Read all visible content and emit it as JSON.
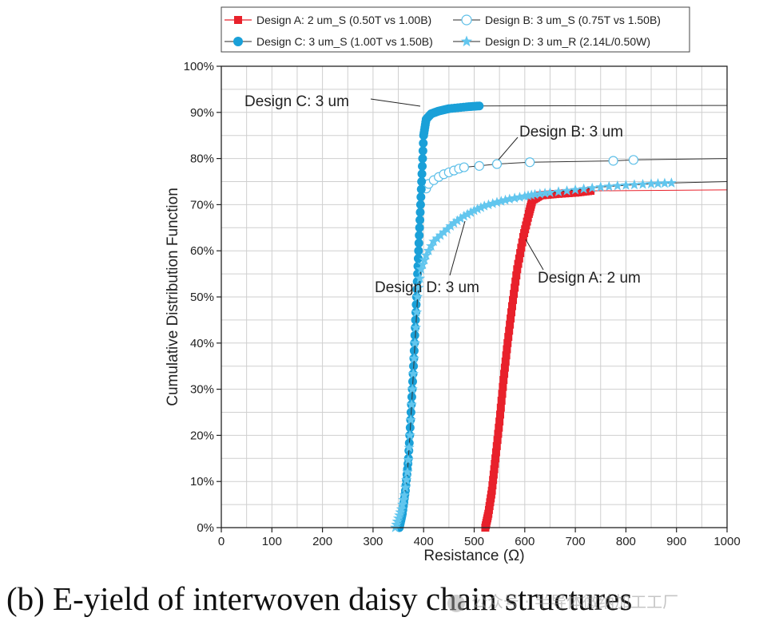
{
  "caption": "(b) E-yield of interwoven daisy chain structures",
  "watermark": "公众号 · 半导体微纳加工工厂",
  "chart_data": {
    "type": "line",
    "xlabel": "Resistance (Ω)",
    "ylabel": "Cumulative Distribution Function",
    "xlim": [
      0,
      1000
    ],
    "ylim": [
      0,
      100
    ],
    "xticks": [
      0,
      100,
      200,
      300,
      400,
      500,
      600,
      700,
      800,
      900,
      1000
    ],
    "yticks": [
      0,
      10,
      20,
      30,
      40,
      50,
      60,
      70,
      80,
      90,
      100
    ],
    "ytick_labels": [
      "0%",
      "10%",
      "20%",
      "30%",
      "40%",
      "50%",
      "60%",
      "70%",
      "80%",
      "90%",
      "100%"
    ],
    "grid": true,
    "legend_position": "top",
    "series": [
      {
        "name": "Design A: 2 um_S (0.50T vs 1.00B)",
        "marker": "square",
        "filled": true,
        "color": "#e8212b",
        "annotation": "Design A: 2 um",
        "x": [
          522,
          528,
          535,
          542,
          550,
          558,
          566,
          575,
          585,
          597,
          608,
          615,
          630,
          660,
          700,
          730,
          1000
        ],
        "y": [
          0,
          3,
          8,
          15,
          23,
          32,
          40,
          48,
          56,
          63,
          68,
          71,
          72,
          72.3,
          72.6,
          73,
          73.2
        ]
      },
      {
        "name": "Design B: 3 um_S (0.75T vs 1.50B)",
        "marker": "circle",
        "filled": false,
        "color": "#5dbfe8",
        "annotation": "Design B: 3 um",
        "x": [
          405,
          410,
          420,
          430,
          440,
          450,
          460,
          470,
          480,
          510,
          545,
          610,
          775,
          815,
          1000
        ],
        "y": [
          73.5,
          74.5,
          75.3,
          76,
          76.6,
          77,
          77.4,
          77.8,
          78.1,
          78.4,
          78.8,
          79.2,
          79.5,
          79.7,
          80
        ]
      },
      {
        "name": "Design C: 3 um_S (1.00T vs 1.50B)",
        "marker": "circle",
        "filled": true,
        "color": "#1aa0d8",
        "annotation": "Design C: 3 um",
        "x": [
          352,
          358,
          364,
          370,
          375,
          380,
          384,
          388,
          392,
          396,
          400,
          405,
          415,
          430,
          450,
          485,
          510,
          1000
        ],
        "y": [
          0,
          3,
          8,
          15,
          25,
          35,
          45,
          55,
          65,
          75,
          85,
          88.5,
          89.7,
          90.3,
          90.8,
          91.2,
          91.4,
          91.5
        ]
      },
      {
        "name": "Design D: 3 um_R (2.14L/0.50W)",
        "marker": "star",
        "filled": true,
        "color": "#62c6ee",
        "annotation": "Design D: 3 um",
        "x": [
          344,
          350,
          356,
          362,
          368,
          373,
          378,
          383,
          388,
          395,
          405,
          420,
          440,
          460,
          480,
          500,
          520,
          545,
          570,
          600,
          620,
          650,
          700,
          750,
          800,
          850,
          890,
          1000
        ],
        "y": [
          0,
          2,
          4,
          7,
          12,
          20,
          30,
          40,
          50,
          56,
          59,
          62,
          64,
          66,
          67.5,
          68.7,
          69.7,
          70.5,
          71.2,
          71.8,
          72.2,
          72.6,
          73.2,
          73.8,
          74.2,
          74.5,
          74.7,
          75
        ]
      }
    ]
  }
}
